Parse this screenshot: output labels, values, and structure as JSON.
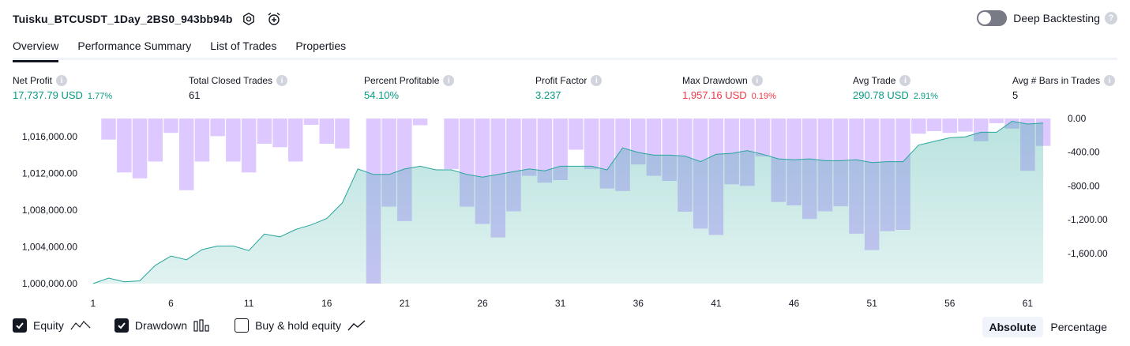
{
  "header": {
    "title": "Tuisku_BTCUSDT_1Day_2BS0_943bb94b",
    "settings_icon": "settings-hex-icon",
    "alert_icon": "alarm-add-icon"
  },
  "deep_backtesting": {
    "label": "Deep Backtesting",
    "enabled": false
  },
  "tabs": [
    {
      "label": "Overview",
      "active": true
    },
    {
      "label": "Performance Summary",
      "active": false
    },
    {
      "label": "List of Trades",
      "active": false
    },
    {
      "label": "Properties",
      "active": false
    }
  ],
  "metrics": [
    {
      "label": "Net Profit",
      "value": "17,737.79 USD",
      "pct": "1.77%",
      "color": "green"
    },
    {
      "label": "Total Closed Trades",
      "value": "61",
      "pct": "",
      "color": "dark"
    },
    {
      "label": "Percent Profitable",
      "value": "54.10%",
      "pct": "",
      "color": "green"
    },
    {
      "label": "Profit Factor",
      "value": "3.237",
      "pct": "",
      "color": "green"
    },
    {
      "label": "Max Drawdown",
      "value": "1,957.16 USD",
      "pct": "0.19%",
      "color": "red"
    },
    {
      "label": "Avg Trade",
      "value": "290.78 USD",
      "pct": "2.91%",
      "color": "green"
    },
    {
      "label": "Avg # Bars in Trades",
      "value": "5",
      "pct": "",
      "color": "dark"
    }
  ],
  "chart_data": {
    "type": "area",
    "x_ticks": [
      1,
      6,
      11,
      16,
      21,
      26,
      31,
      36,
      41,
      46,
      51,
      56,
      61
    ],
    "left_axis": {
      "ticks": [
        "1,000,000.00",
        "1,004,000.00",
        "1,008,000.00",
        "1,012,000.00",
        "1,016,000.00"
      ],
      "range": [
        1000000,
        1018000
      ]
    },
    "right_axis": {
      "ticks": [
        "0.00",
        "-400.00",
        "-800.00",
        "-1,200.00",
        "-1,600.00"
      ],
      "range": [
        -1957,
        0
      ]
    },
    "series": [
      {
        "name": "Equity",
        "color": "#26a69a",
        "values": [
          1000000,
          1000600,
          1000200,
          1000300,
          1002000,
          1003000,
          1002600,
          1003700,
          1004100,
          1004100,
          1003600,
          1005400,
          1005100,
          1005900,
          1006400,
          1007100,
          1008800,
          1012500,
          1011900,
          1011900,
          1012500,
          1012800,
          1012400,
          1012400,
          1011900,
          1011600,
          1011900,
          1012200,
          1012500,
          1012300,
          1012800,
          1012800,
          1012800,
          1012400,
          1014800,
          1014300,
          1014000,
          1014000,
          1013900,
          1013300,
          1014100,
          1014200,
          1014500,
          1014100,
          1013600,
          1013500,
          1013600,
          1013400,
          1013400,
          1013500,
          1013200,
          1013300,
          1013300,
          1015100,
          1015500,
          1015900,
          1016000,
          1016500,
          1016500,
          1017700,
          1017400,
          1017500
        ]
      },
      {
        "name": "Drawdown",
        "color": "#b39ddb",
        "values": [
          0,
          -250,
          -640,
          -710,
          -510,
          -170,
          -850,
          -510,
          -210,
          -510,
          -640,
          -300,
          -340,
          -510,
          -75,
          -300,
          -355,
          0,
          -1957,
          -1045,
          -1215,
          -80,
          0,
          -600,
          -1045,
          -1250,
          -1410,
          -1100,
          -680,
          -760,
          -730,
          -370,
          -600,
          -830,
          -860,
          -545,
          -680,
          -740,
          -1105,
          -1305,
          -1380,
          -780,
          -800,
          -450,
          -990,
          -1030,
          -1190,
          -1100,
          -1040,
          -1365,
          -1560,
          -1335,
          -1320,
          -180,
          -150,
          -170,
          -155,
          -270,
          -55,
          -120,
          -620,
          -325
        ]
      }
    ]
  },
  "legend": [
    {
      "label": "Equity",
      "checked": true,
      "icon": "equity-line-icon"
    },
    {
      "label": "Drawdown",
      "checked": true,
      "icon": "drawdown-bars-icon"
    },
    {
      "label": "Buy & hold equity",
      "checked": false,
      "icon": "buy-hold-line-icon"
    }
  ],
  "modes": [
    {
      "label": "Absolute",
      "active": true
    },
    {
      "label": "Percentage",
      "active": false
    }
  ]
}
